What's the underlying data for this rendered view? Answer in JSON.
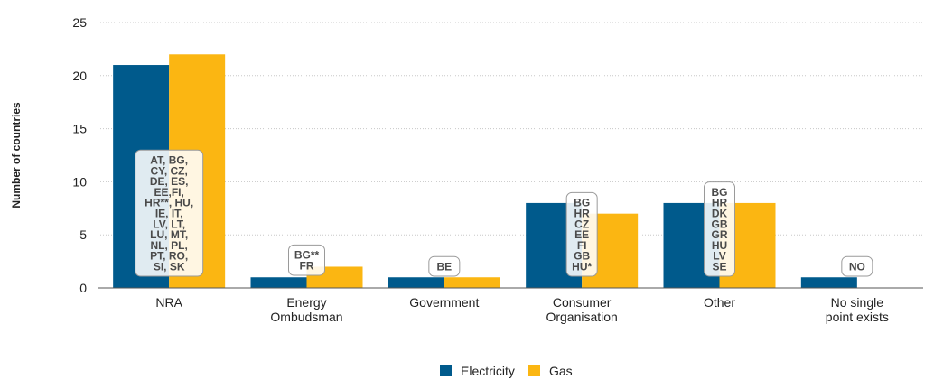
{
  "chart_data": {
    "type": "bar",
    "ylabel": "Number of countries",
    "ylim": [
      0,
      25
    ],
    "yticks": [
      0,
      5,
      10,
      15,
      20,
      25
    ],
    "grid": "horizontal dotted",
    "legend_position": "bottom-center",
    "categories": [
      [
        "NRA"
      ],
      [
        "Energy",
        "Ombudsman"
      ],
      [
        "Government"
      ],
      [
        "Consumer",
        "Organisation"
      ],
      [
        "Other"
      ],
      [
        "No single",
        "point exists"
      ]
    ],
    "series": [
      {
        "name": "Electricity",
        "color": "#005a8c",
        "values": [
          21,
          1,
          1,
          8,
          8,
          1
        ]
      },
      {
        "name": "Gas",
        "color": "#fbb612",
        "values": [
          22,
          2,
          1,
          7,
          8,
          0
        ]
      }
    ],
    "annotations": [
      {
        "category_index": 0,
        "lines": [
          "AT, BG,",
          "CY, CZ,",
          "DE, ES,",
          "EE,FI,",
          "HR**, HU,",
          "IE, IT,",
          "LV, LT,",
          "LU, MT,",
          "NL, PL,",
          "PT, RO,",
          "SI, SK"
        ]
      },
      {
        "category_index": 1,
        "lines": [
          "BG**",
          "FR"
        ]
      },
      {
        "category_index": 2,
        "lines": [
          "BE"
        ]
      },
      {
        "category_index": 3,
        "lines": [
          "BG",
          "HR",
          "CZ",
          "EE",
          "FI",
          "GB",
          "HU*"
        ]
      },
      {
        "category_index": 4,
        "lines": [
          "BG",
          "HR",
          "DK",
          "GB",
          "GR",
          "HU",
          "LV",
          "SE"
        ]
      },
      {
        "category_index": 5,
        "lines": [
          "NO"
        ]
      }
    ]
  }
}
